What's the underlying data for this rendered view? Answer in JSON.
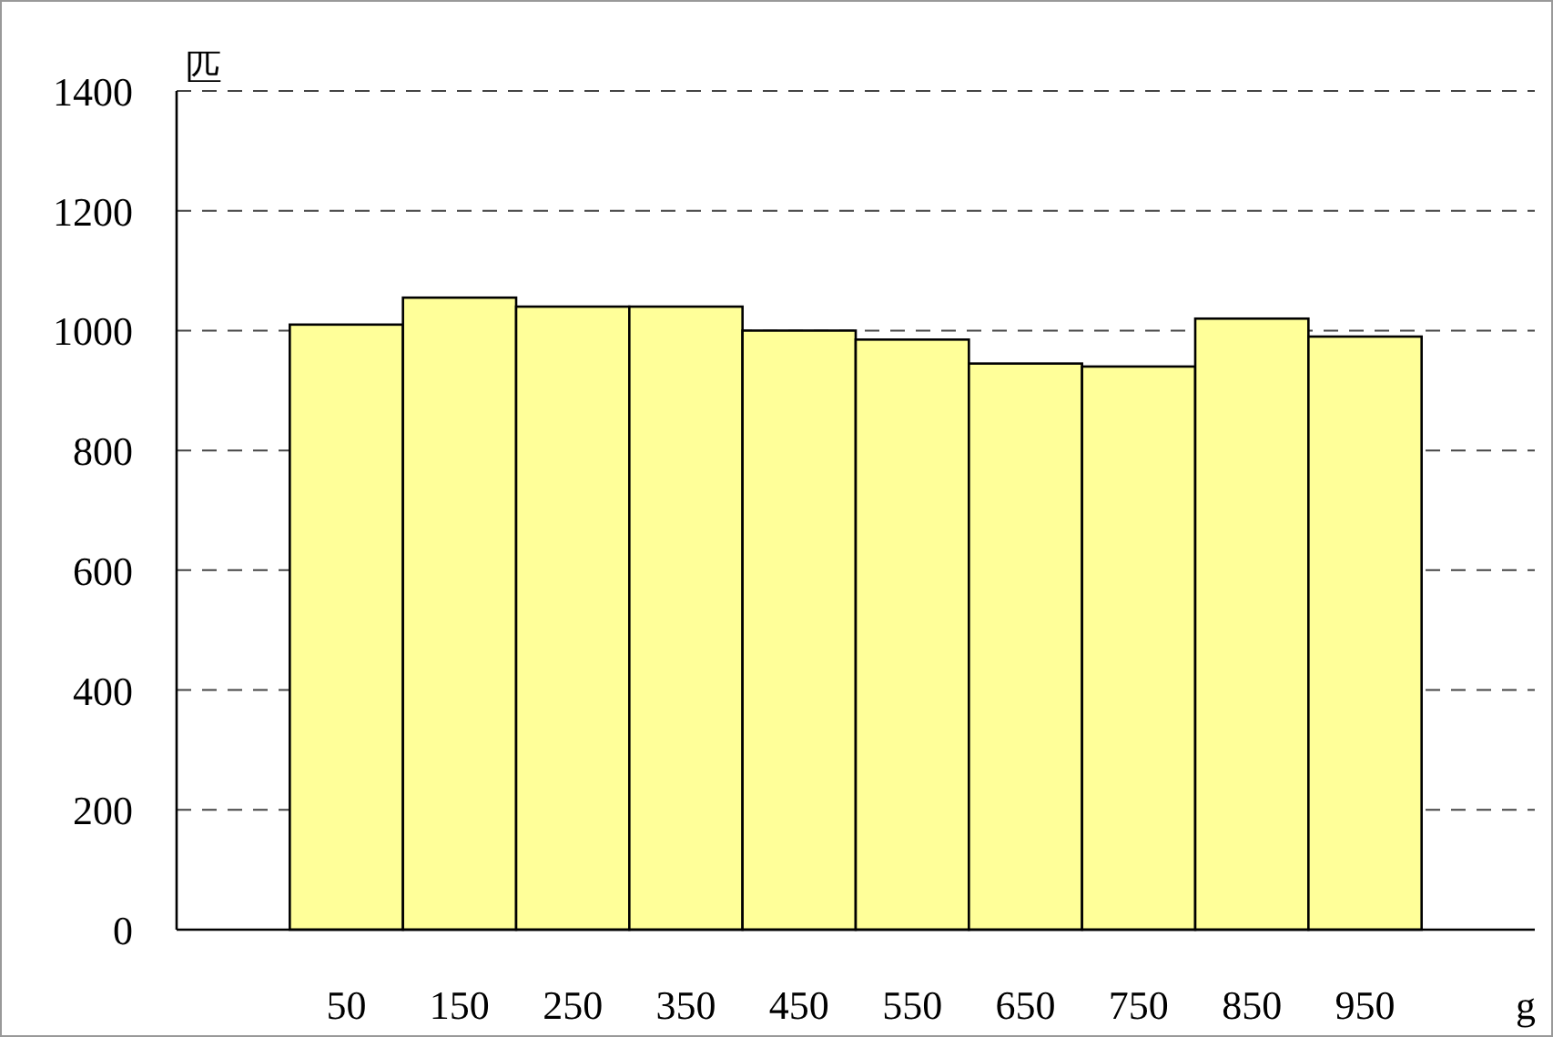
{
  "chart_data": {
    "type": "bar",
    "categories": [
      "50",
      "150",
      "250",
      "350",
      "450",
      "550",
      "650",
      "750",
      "850",
      "950"
    ],
    "values": [
      1010,
      1055,
      1040,
      1040,
      1000,
      985,
      945,
      940,
      1020,
      990
    ],
    "color": "#ffff99",
    "ylim": [
      0,
      1400
    ],
    "yticks": [
      0,
      200,
      400,
      600,
      800,
      1000,
      1200,
      1400
    ],
    "grid": "y",
    "xlabel": "g",
    "ylabel": "匹"
  }
}
